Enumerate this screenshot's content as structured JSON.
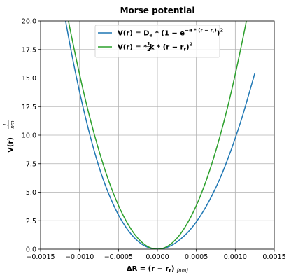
{
  "chart_data": {
    "type": "line",
    "title": "Morse potential",
    "xlim": [
      -0.0015,
      0.0015
    ],
    "ylim": [
      0,
      20
    ],
    "xticks": [
      "−0.0015",
      "−0.0010",
      "−0.0005",
      "0.0000",
      "0.0005",
      "0.0010",
      "0.0015"
    ],
    "yticks": [
      "0.0",
      "2.5",
      "5.0",
      "7.5",
      "10.0",
      "12.5",
      "15.0",
      "17.5",
      "20.0"
    ],
    "xlabel": {
      "main": "ΔR  =  (r − r",
      "sub": "r",
      "close": ")",
      "unit": "[nm]"
    },
    "ylabel": {
      "main": "V(r)",
      "unit_num": "J",
      "unit_den": "nm"
    },
    "grid": true,
    "legend_position": "top-center",
    "series": [
      {
        "name": "V(r) = D_e * (1 − e^{−a*(r − r_r)})^2",
        "legend": {
          "pre": "V(r) = D",
          "sub1": "e",
          "mid": " * (1 − e",
          "sup": "−a * (r − r",
          "sup_sub": "r",
          "sup_close": ")",
          "post": ")",
          "sq": "2"
        },
        "color": "#1f77b4",
        "x": [
          -0.0012,
          -0.0011,
          -0.001,
          -0.0009,
          -0.0008,
          -0.0007,
          -0.0006,
          -0.0005,
          -0.0004,
          -0.0003,
          -0.0002,
          -0.0001,
          0.0,
          0.0001,
          0.0002,
          0.0003,
          0.0004,
          0.0005,
          0.0006,
          0.0007,
          0.0008,
          0.0009,
          0.001,
          0.0011,
          0.00125
        ],
        "y": [
          20.8,
          17.1,
          13.8,
          10.9,
          8.35,
          6.2,
          4.45,
          3.0,
          1.88,
          1.03,
          0.44,
          0.11,
          0.0,
          0.1,
          0.4,
          0.9,
          1.55,
          2.4,
          3.45,
          4.7,
          6.15,
          7.85,
          9.75,
          11.85,
          15.4
        ]
      },
      {
        "name": "V(r) = 1/2 * k * (r − r_r)^2",
        "legend": {
          "pre": "V(r) = ",
          "frac_num": "1",
          "frac_den": "2",
          "post": " * k * (r − r",
          "sub": "r",
          "close": ")",
          "sq": "2"
        },
        "color": "#2ca02c",
        "x": [
          -0.00115,
          -0.0011,
          -0.001,
          -0.0009,
          -0.0008,
          -0.0007,
          -0.0006,
          -0.0005,
          -0.0004,
          -0.0003,
          -0.0002,
          -0.0001,
          0.0,
          0.0001,
          0.0002,
          0.0003,
          0.0004,
          0.0005,
          0.0006,
          0.0007,
          0.0008,
          0.0009,
          0.001,
          0.0011,
          0.00115
        ],
        "y": [
          20.28,
          18.56,
          15.34,
          12.42,
          9.82,
          7.52,
          5.52,
          3.84,
          2.46,
          1.38,
          0.61,
          0.15,
          0.0,
          0.15,
          0.61,
          1.38,
          2.46,
          3.84,
          5.52,
          7.52,
          9.82,
          12.42,
          15.34,
          18.56,
          20.28
        ]
      }
    ]
  }
}
